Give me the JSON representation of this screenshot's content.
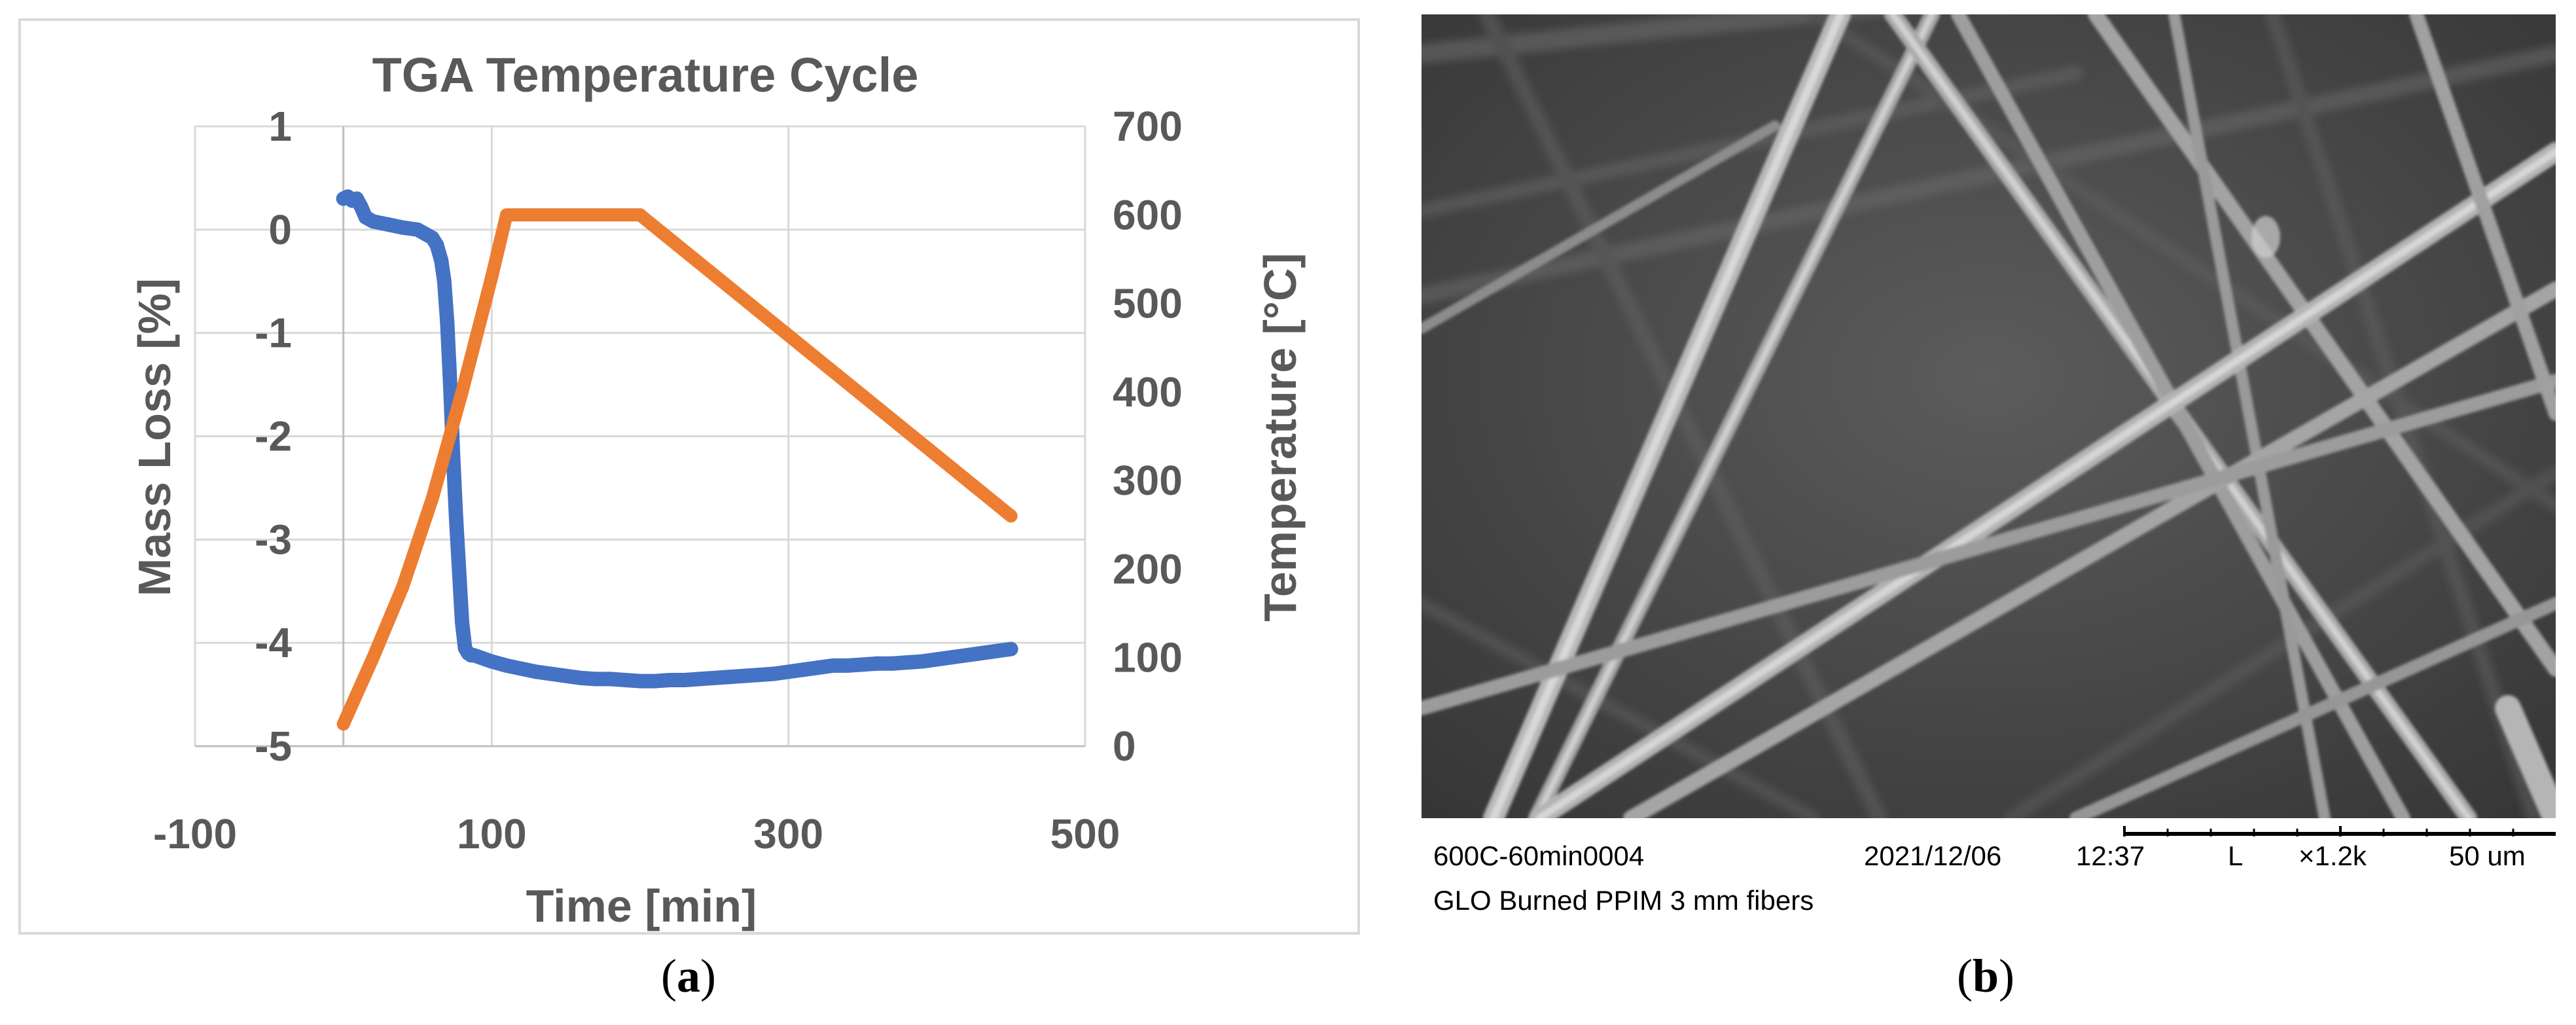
{
  "chart_data": {
    "type": "line",
    "title": "TGA Temperature Cycle",
    "xlabel": "Time [min]",
    "ylabel": "Mass Loss [%]",
    "y2label": "Temperature [°C]",
    "xlim": [
      -100,
      500
    ],
    "ylim": [
      -5,
      1
    ],
    "y2lim": [
      0,
      700
    ],
    "xticks": [
      "-100",
      "100",
      "300",
      "500"
    ],
    "xtick_values": [
      -100,
      100,
      300,
      500
    ],
    "yticks": [
      "1",
      "0",
      "-1",
      "-2",
      "-3",
      "-4",
      "-5"
    ],
    "ytick_values": [
      1,
      0,
      -1,
      -2,
      -3,
      -4,
      -5
    ],
    "y2ticks": [
      "700",
      "600",
      "500",
      "400",
      "300",
      "200",
      "100",
      "0"
    ],
    "y2tick_values": [
      700,
      600,
      500,
      400,
      300,
      200,
      100,
      0
    ],
    "grid": true,
    "series": [
      {
        "axis": "left",
        "color": "#4472C4",
        "x": [
          0,
          3,
          6,
          9,
          12,
          15,
          20,
          30,
          40,
          50,
          55,
          60,
          63,
          66,
          68,
          70,
          72,
          74,
          76,
          78,
          80,
          82,
          84,
          86,
          88,
          92,
          100,
          110,
          120,
          130,
          140,
          150,
          160,
          170,
          180,
          190,
          200,
          210,
          220,
          230,
          240,
          250,
          260,
          270,
          280,
          290,
          300,
          310,
          320,
          330,
          340,
          350,
          360,
          370,
          380,
          390,
          400,
          410,
          420,
          430,
          440,
          450
        ],
        "y": [
          0.3,
          0.32,
          0.28,
          0.3,
          0.22,
          0.12,
          0.08,
          0.05,
          0.02,
          0.0,
          -0.04,
          -0.08,
          -0.15,
          -0.3,
          -0.5,
          -0.9,
          -1.5,
          -2.2,
          -2.8,
          -3.3,
          -3.8,
          -4.05,
          -4.1,
          -4.12,
          -4.12,
          -4.14,
          -4.18,
          -4.22,
          -4.25,
          -4.28,
          -4.3,
          -4.32,
          -4.34,
          -4.35,
          -4.35,
          -4.36,
          -4.37,
          -4.37,
          -4.36,
          -4.36,
          -4.35,
          -4.34,
          -4.33,
          -4.32,
          -4.31,
          -4.3,
          -4.28,
          -4.26,
          -4.24,
          -4.22,
          -4.22,
          -4.21,
          -4.2,
          -4.2,
          -4.19,
          -4.18,
          -4.16,
          -4.14,
          -4.12,
          -4.1,
          -4.08,
          -4.06
        ]
      },
      {
        "axis": "right",
        "color": "#ED7D31",
        "x": [
          0,
          20,
          40,
          60,
          80,
          100,
          110,
          200,
          450
        ],
        "y": [
          25,
          100,
          180,
          280,
          400,
          530,
          600,
          600,
          260
        ]
      }
    ]
  },
  "captions": {
    "a": "a",
    "b": "b"
  },
  "sem": {
    "sample_id": "600C-60min0004",
    "date": "2021/12/06",
    "time": "12:37",
    "mode": "L",
    "magnification": "×1.2k",
    "scale_bar": "50 um",
    "description": "GLO Burned PPIM 3 mm fibers"
  }
}
